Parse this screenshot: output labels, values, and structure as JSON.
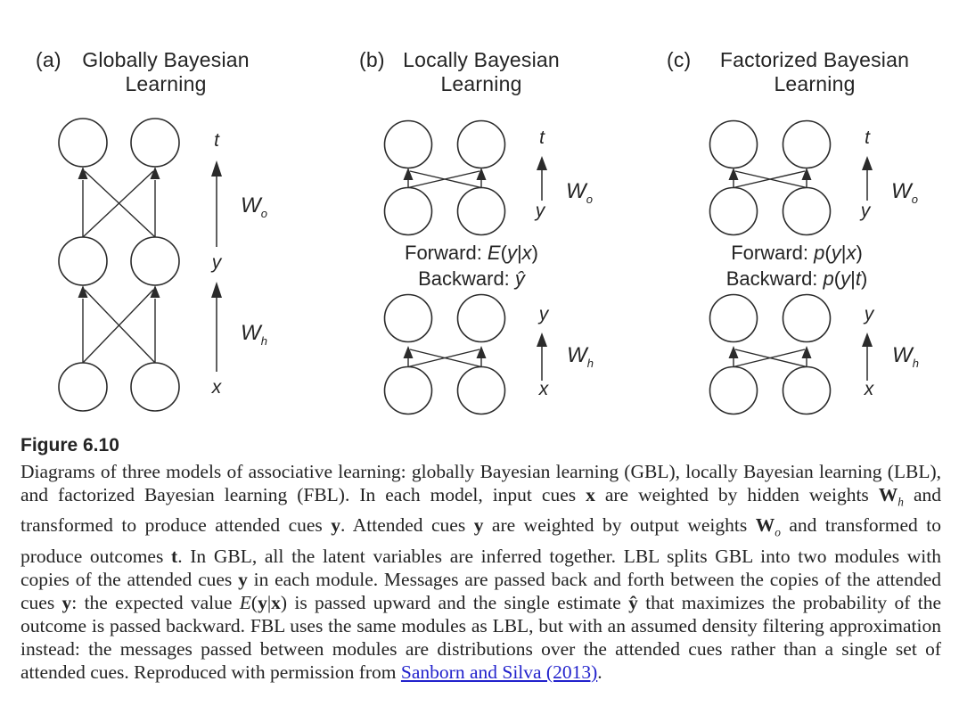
{
  "figure": {
    "panels": [
      {
        "tag": "(a)",
        "title_line1": "Globally Bayesian",
        "title_line2": "Learning"
      },
      {
        "tag": "(b)",
        "title_line1": "Locally Bayesian",
        "title_line2": "Learning",
        "forward": [
          {
            "t": "Forward: "
          },
          {
            "t": "E",
            "s": "i"
          },
          {
            "t": "("
          },
          {
            "t": "y",
            "s": "i"
          },
          {
            "t": "|"
          },
          {
            "t": "x",
            "s": "i"
          },
          {
            "t": ")"
          }
        ],
        "backward": [
          {
            "t": "Backward: "
          },
          {
            "t": "ŷ",
            "s": "i"
          }
        ]
      },
      {
        "tag": "(c)",
        "title_line1": "Factorized Bayesian",
        "title_line2": "Learning",
        "forward": [
          {
            "t": "Forward: "
          },
          {
            "t": "p",
            "s": "i"
          },
          {
            "t": "("
          },
          {
            "t": "y",
            "s": "i"
          },
          {
            "t": "|"
          },
          {
            "t": "x",
            "s": "i"
          },
          {
            "t": ")"
          }
        ],
        "backward": [
          {
            "t": "Backward: "
          },
          {
            "t": "p",
            "s": "i"
          },
          {
            "t": "("
          },
          {
            "t": "y",
            "s": "i"
          },
          {
            "t": "|"
          },
          {
            "t": "t",
            "s": "i"
          },
          {
            "t": ")"
          }
        ]
      }
    ],
    "node_labels": {
      "t": "t",
      "y": "y",
      "x": "x",
      "W": "W",
      "sub_o": "o",
      "sub_h": "h"
    }
  },
  "caption": {
    "heading": "Figure 6.10",
    "segments": [
      {
        "t": "Diagrams of three models of associative learning: globally Bayesian learning (GBL), locally Bayesian learning (LBL), and factorized Bayesian learning (FBL). In each model, input cues "
      },
      {
        "t": "x",
        "s": "b"
      },
      {
        "t": " are weighted by hidden weights "
      },
      {
        "t": "W",
        "s": "b"
      },
      {
        "t": "h",
        "s": "isub"
      },
      {
        "t": " and transformed to produce attended cues "
      },
      {
        "t": "y",
        "s": "b"
      },
      {
        "t": ". Attended cues "
      },
      {
        "t": "y",
        "s": "b"
      },
      {
        "t": " are weighted by output weights "
      },
      {
        "t": "W",
        "s": "b"
      },
      {
        "t": "o",
        "s": "isub"
      },
      {
        "t": " and transformed to produce outcomes "
      },
      {
        "t": "t",
        "s": "b"
      },
      {
        "t": ". In GBL, all the latent variables are inferred together. LBL splits GBL into two modules with copies of the attended cues "
      },
      {
        "t": "y",
        "s": "b"
      },
      {
        "t": " in each module. Messages are passed back and forth between the copies of the attended cues "
      },
      {
        "t": "y",
        "s": "b"
      },
      {
        "t": ": the expected value "
      },
      {
        "t": "E",
        "s": "i"
      },
      {
        "t": "("
      },
      {
        "t": "y",
        "s": "b"
      },
      {
        "t": "|"
      },
      {
        "t": "x",
        "s": "b"
      },
      {
        "t": ") is passed upward and the single estimate "
      },
      {
        "t": "ŷ",
        "s": "b"
      },
      {
        "t": " that maximizes the probability of the outcome is passed backward. FBL uses the same modules as LBL, but with an assumed density filtering approximation instead: the messages passed between modules are distributions over the attended cues rather than a single set of attended cues. Reproduced with permission from "
      },
      {
        "t": "Sanborn and Silva (2013)",
        "s": "link"
      },
      {
        "t": "."
      }
    ]
  },
  "colors": {
    "ink": "#242424",
    "link": "#2222cc",
    "background": "#ffffff"
  }
}
